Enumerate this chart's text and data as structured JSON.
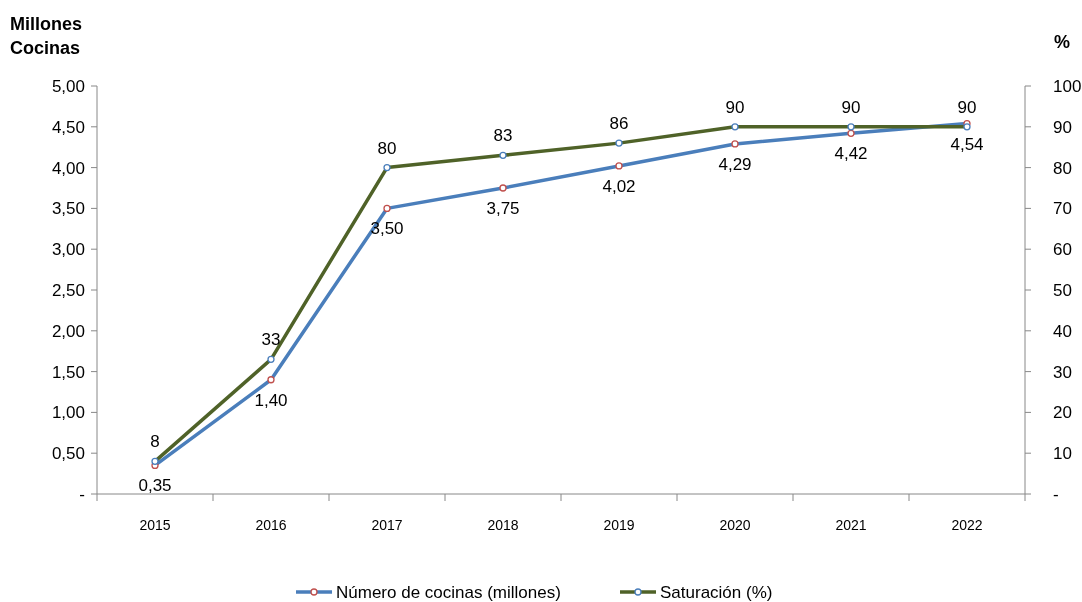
{
  "chart_data": {
    "type": "line",
    "ylabel": "Millones\nCocinas",
    "y2label": "%",
    "categories": [
      "2015",
      "2016",
      "2017",
      "2018",
      "2019",
      "2020",
      "2021",
      "2022"
    ],
    "series": [
      {
        "name": "Número de cocinas (millones)",
        "color": "#4a7ebb",
        "values": [
          0.35,
          1.4,
          3.5,
          3.75,
          4.02,
          4.29,
          4.42,
          4.54
        ],
        "value_labels": [
          "0,35",
          "1,40",
          "3,50",
          "3,75",
          "4,02",
          "4,29",
          "4,42",
          "4,54"
        ]
      },
      {
        "name": "Saturación (%)",
        "color": "#4f6228",
        "axis": "y2",
        "values": [
          8,
          33,
          80,
          83,
          86,
          90,
          90,
          90
        ],
        "value_labels": [
          "8",
          "33",
          "80",
          "83",
          "86",
          "90",
          "90",
          "90"
        ]
      }
    ],
    "ylim": [
      0,
      5
    ],
    "yticks": [
      {
        "value": 0,
        "label": "-"
      },
      {
        "value": 0.5,
        "label": "0,50"
      },
      {
        "value": 1,
        "label": "1,00"
      },
      {
        "value": 1.5,
        "label": "1,50"
      },
      {
        "value": 2,
        "label": "2,00"
      },
      {
        "value": 2.5,
        "label": "2,50"
      },
      {
        "value": 3,
        "label": "3,00"
      },
      {
        "value": 3.5,
        "label": "3,50"
      },
      {
        "value": 4,
        "label": "4,00"
      },
      {
        "value": 4.5,
        "label": "4,50"
      },
      {
        "value": 5,
        "label": "5,00"
      }
    ],
    "y2lim": [
      0,
      100
    ],
    "y2ticks": [
      {
        "value": 0,
        "label": "-"
      },
      10,
      20,
      30,
      40,
      50,
      60,
      70,
      80,
      90,
      100
    ],
    "grid": false,
    "legend": "bottom",
    "marker": "circle",
    "line_style": "solid"
  }
}
